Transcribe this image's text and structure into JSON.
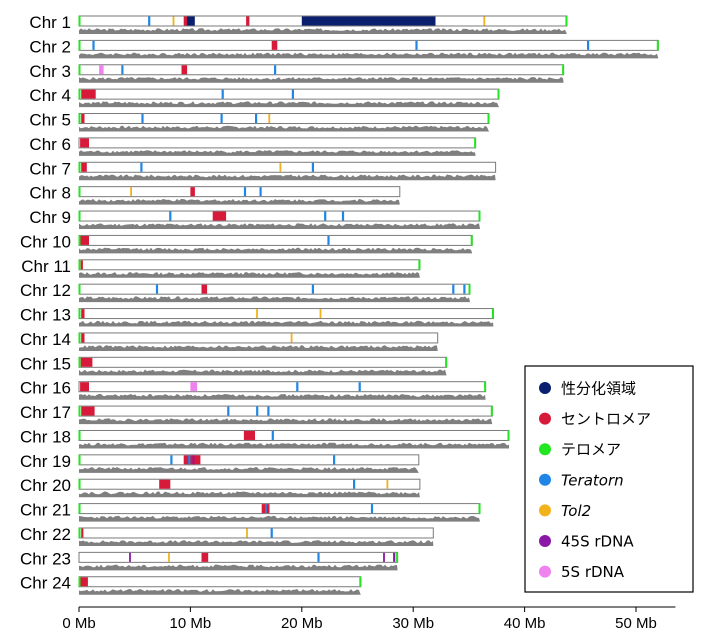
{
  "chart_data": {
    "type": "chromosome-ideogram",
    "x_unit": "Mb",
    "xlim": [
      0,
      53
    ],
    "x_ticks": [
      {
        "value": 0,
        "label": "0 Mb"
      },
      {
        "value": 10,
        "label": "10 Mb"
      },
      {
        "value": 20,
        "label": "20 Mb"
      },
      {
        "value": 30,
        "label": "30 Mb"
      },
      {
        "value": 40,
        "label": "40 Mb"
      },
      {
        "value": 50,
        "label": "50 Mb"
      }
    ],
    "legend_position": "bottom-right",
    "legend": [
      {
        "key": "sex",
        "label": "性分化領域",
        "italic": false,
        "color": "#0a1f6e"
      },
      {
        "key": "cen",
        "label": "セントロメア",
        "italic": false,
        "color": "#d7193a"
      },
      {
        "key": "tel",
        "label": "テロメア",
        "italic": false,
        "color": "#22e61f"
      },
      {
        "key": "ter",
        "label": "Teratorn",
        "italic": true,
        "color": "#1f86e6"
      },
      {
        "key": "tol2",
        "label": "Tol2",
        "italic": true,
        "color": "#f2b21c"
      },
      {
        "key": "r45",
        "label": "45S rDNA",
        "italic": false,
        "color": "#8a17a8"
      },
      {
        "key": "r5",
        "label": "5S rDNA",
        "italic": false,
        "color": "#ee82ee"
      }
    ],
    "chromosomes": [
      {
        "name": "Chr 1",
        "length": 43.8,
        "tel_start": true,
        "tel_end": true,
        "features": [
          {
            "type": "sex",
            "start": 20.0,
            "end": 32.0
          },
          {
            "type": "sex",
            "start": 9.6,
            "end": 10.4
          },
          {
            "type": "cen",
            "start": 9.4,
            "end": 9.7
          },
          {
            "type": "cen",
            "start": 15.0,
            "end": 15.3
          },
          {
            "type": "ter",
            "start": 6.2,
            "end": 6.4
          },
          {
            "type": "tol2",
            "start": 8.4,
            "end": 8.55
          },
          {
            "type": "tol2",
            "start": 36.3,
            "end": 36.45
          }
        ]
      },
      {
        "name": "Chr 2",
        "length": 52.0,
        "tel_start": true,
        "tel_end": true,
        "features": [
          {
            "type": "ter",
            "start": 1.2,
            "end": 1.4
          },
          {
            "type": "cen",
            "start": 17.3,
            "end": 17.8
          },
          {
            "type": "ter",
            "start": 30.2,
            "end": 30.4
          },
          {
            "type": "ter",
            "start": 45.6,
            "end": 45.8
          }
        ]
      },
      {
        "name": "Chr 3",
        "length": 43.5,
        "tel_start": true,
        "tel_end": true,
        "features": [
          {
            "type": "r5",
            "start": 1.8,
            "end": 2.2
          },
          {
            "type": "ter",
            "start": 3.8,
            "end": 4.0
          },
          {
            "type": "cen",
            "start": 9.2,
            "end": 9.7
          },
          {
            "type": "ter",
            "start": 17.5,
            "end": 17.7
          }
        ]
      },
      {
        "name": "Chr 4",
        "length": 37.7,
        "tel_start": true,
        "tel_end": true,
        "features": [
          {
            "type": "cen",
            "start": 0.2,
            "end": 1.5
          },
          {
            "type": "ter",
            "start": 12.8,
            "end": 13.0
          },
          {
            "type": "ter",
            "start": 19.1,
            "end": 19.3
          }
        ]
      },
      {
        "name": "Chr 5",
        "length": 36.8,
        "tel_start": true,
        "tel_end": true,
        "features": [
          {
            "type": "cen",
            "start": 0.2,
            "end": 0.5
          },
          {
            "type": "ter",
            "start": 5.6,
            "end": 5.8
          },
          {
            "type": "ter",
            "start": 12.7,
            "end": 12.9
          },
          {
            "type": "ter",
            "start": 15.8,
            "end": 16.0
          },
          {
            "type": "tol2",
            "start": 17.0,
            "end": 17.15
          }
        ]
      },
      {
        "name": "Chr 6",
        "length": 35.6,
        "tel_start": false,
        "tel_end": true,
        "features": [
          {
            "type": "cen",
            "start": 0.1,
            "end": 0.9
          }
        ]
      },
      {
        "name": "Chr 7",
        "length": 37.4,
        "tel_start": true,
        "tel_end": false,
        "features": [
          {
            "type": "cen",
            "start": 0.2,
            "end": 0.7
          },
          {
            "type": "ter",
            "start": 5.5,
            "end": 5.7
          },
          {
            "type": "tol2",
            "start": 18.0,
            "end": 18.15
          },
          {
            "type": "ter",
            "start": 20.9,
            "end": 21.1
          }
        ]
      },
      {
        "name": "Chr 8",
        "length": 28.8,
        "tel_start": true,
        "tel_end": false,
        "features": [
          {
            "type": "tol2",
            "start": 4.6,
            "end": 4.75
          },
          {
            "type": "cen",
            "start": 10.0,
            "end": 10.4
          },
          {
            "type": "ter",
            "start": 14.8,
            "end": 15.0
          },
          {
            "type": "ter",
            "start": 16.2,
            "end": 16.4
          }
        ]
      },
      {
        "name": "Chr 9",
        "length": 36.0,
        "tel_start": true,
        "tel_end": true,
        "features": [
          {
            "type": "ter",
            "start": 8.1,
            "end": 8.3
          },
          {
            "type": "cen",
            "start": 12.0,
            "end": 13.2
          },
          {
            "type": "ter",
            "start": 22.0,
            "end": 22.2
          },
          {
            "type": "ter",
            "start": 23.6,
            "end": 23.8
          }
        ]
      },
      {
        "name": "Chr 10",
        "length": 35.3,
        "tel_start": true,
        "tel_end": true,
        "features": [
          {
            "type": "cen",
            "start": 0.1,
            "end": 0.9
          },
          {
            "type": "ter",
            "start": 22.3,
            "end": 22.5
          }
        ]
      },
      {
        "name": "Chr 11",
        "length": 30.6,
        "tel_start": true,
        "tel_end": true,
        "features": [
          {
            "type": "cen",
            "start": 0.15,
            "end": 0.35
          }
        ]
      },
      {
        "name": "Chr 12",
        "length": 35.1,
        "tel_start": true,
        "tel_end": true,
        "features": [
          {
            "type": "ter",
            "start": 6.9,
            "end": 7.1
          },
          {
            "type": "cen",
            "start": 11.0,
            "end": 11.5
          },
          {
            "type": "ter",
            "start": 20.9,
            "end": 21.1
          },
          {
            "type": "ter",
            "start": 33.5,
            "end": 33.7
          },
          {
            "type": "ter",
            "start": 34.5,
            "end": 34.7
          }
        ]
      },
      {
        "name": "Chr 13",
        "length": 37.2,
        "tel_start": true,
        "tel_end": true,
        "features": [
          {
            "type": "cen",
            "start": 0.2,
            "end": 0.5
          },
          {
            "type": "tol2",
            "start": 15.9,
            "end": 16.05
          },
          {
            "type": "tol2",
            "start": 21.6,
            "end": 21.75
          }
        ]
      },
      {
        "name": "Chr 14",
        "length": 32.2,
        "tel_start": true,
        "tel_end": false,
        "features": [
          {
            "type": "cen",
            "start": 0.2,
            "end": 0.5
          },
          {
            "type": "tol2",
            "start": 19.0,
            "end": 19.15
          }
        ]
      },
      {
        "name": "Chr 15",
        "length": 33.0,
        "tel_start": true,
        "tel_end": true,
        "features": [
          {
            "type": "cen",
            "start": 0.15,
            "end": 1.2
          }
        ]
      },
      {
        "name": "Chr 16",
        "length": 36.5,
        "tel_start": false,
        "tel_end": true,
        "features": [
          {
            "type": "cen",
            "start": 0.1,
            "end": 0.9
          },
          {
            "type": "r5",
            "start": 10.0,
            "end": 10.6
          },
          {
            "type": "ter",
            "start": 19.5,
            "end": 19.7
          },
          {
            "type": "ter",
            "start": 25.1,
            "end": 25.3
          }
        ]
      },
      {
        "name": "Chr 17",
        "length": 37.1,
        "tel_start": true,
        "tel_end": true,
        "features": [
          {
            "type": "cen",
            "start": 0.2,
            "end": 1.4
          },
          {
            "type": "ter",
            "start": 13.3,
            "end": 13.5
          },
          {
            "type": "ter",
            "start": 15.9,
            "end": 16.1
          },
          {
            "type": "ter",
            "start": 16.9,
            "end": 17.1
          }
        ]
      },
      {
        "name": "Chr 18",
        "length": 38.6,
        "tel_start": true,
        "tel_end": true,
        "features": [
          {
            "type": "cen",
            "start": 14.8,
            "end": 15.8
          },
          {
            "type": "ter",
            "start": 17.3,
            "end": 17.5
          }
        ]
      },
      {
        "name": "Chr 19",
        "length": 30.5,
        "tel_start": true,
        "tel_end": false,
        "features": [
          {
            "type": "ter",
            "start": 8.2,
            "end": 8.4
          },
          {
            "type": "cen",
            "start": 9.4,
            "end": 10.9
          },
          {
            "type": "ter",
            "start": 9.8,
            "end": 10.0
          },
          {
            "type": "r45",
            "start": 10.2,
            "end": 10.35
          },
          {
            "type": "ter",
            "start": 22.8,
            "end": 23.0
          }
        ]
      },
      {
        "name": "Chr 20",
        "length": 30.6,
        "tel_start": true,
        "tel_end": false,
        "features": [
          {
            "type": "cen",
            "start": 7.2,
            "end": 8.2
          },
          {
            "type": "ter",
            "start": 24.6,
            "end": 24.8
          },
          {
            "type": "tol2",
            "start": 27.6,
            "end": 27.75
          }
        ]
      },
      {
        "name": "Chr 21",
        "length": 36.0,
        "tel_start": true,
        "tel_end": true,
        "features": [
          {
            "type": "cen",
            "start": 16.4,
            "end": 17.1
          },
          {
            "type": "ter",
            "start": 16.7,
            "end": 16.85
          },
          {
            "type": "ter",
            "start": 26.2,
            "end": 26.4
          }
        ]
      },
      {
        "name": "Chr 22",
        "length": 31.8,
        "tel_start": true,
        "tel_end": false,
        "features": [
          {
            "type": "cen",
            "start": 0.2,
            "end": 0.4
          },
          {
            "type": "tol2",
            "start": 15.0,
            "end": 15.15
          },
          {
            "type": "ter",
            "start": 17.2,
            "end": 17.4
          }
        ]
      },
      {
        "name": "Chr 23",
        "length": 28.6,
        "tel_start": false,
        "tel_end": true,
        "features": [
          {
            "type": "r45",
            "start": 4.5,
            "end": 4.65
          },
          {
            "type": "tol2",
            "start": 8.0,
            "end": 8.15
          },
          {
            "type": "cen",
            "start": 11.0,
            "end": 11.6
          },
          {
            "type": "ter",
            "start": 21.4,
            "end": 21.6
          },
          {
            "type": "r45",
            "start": 27.3,
            "end": 27.45
          },
          {
            "type": "r45",
            "start": 28.2,
            "end": 28.4
          }
        ]
      },
      {
        "name": "Chr 24",
        "length": 25.3,
        "tel_start": true,
        "tel_end": true,
        "features": [
          {
            "type": "cen",
            "start": 0.1,
            "end": 0.8
          }
        ]
      }
    ]
  }
}
